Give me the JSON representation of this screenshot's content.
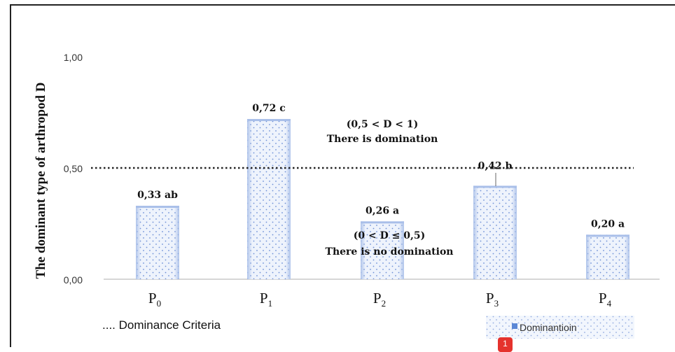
{
  "chart_data": {
    "type": "bar",
    "categories": [
      "P0",
      "P1",
      "P2",
      "P3",
      "P4"
    ],
    "category_parts": [
      {
        "base": "P",
        "sub": "0"
      },
      {
        "base": "P",
        "sub": "1"
      },
      {
        "base": "P",
        "sub": "2"
      },
      {
        "base": "P",
        "sub": "3"
      },
      {
        "base": "P",
        "sub": "4"
      }
    ],
    "values": [
      0.33,
      0.72,
      0.26,
      0.42,
      0.2
    ],
    "data_labels": [
      "0,33 ab",
      "0,72 c",
      "0,26 a",
      "0,42 b",
      "0,20 a"
    ],
    "title": "",
    "xlabel": "",
    "ylabel": "The dominant type of arthropod D",
    "ylim": [
      0,
      1
    ],
    "yticks": [
      0,
      0.5,
      1
    ],
    "ytick_labels": [
      "0,00",
      "0,50",
      "1,00"
    ],
    "reference_line": {
      "value": 0.5,
      "style": "dotted"
    },
    "annotations": {
      "upper_line1": "(0,5 < D < 1)",
      "upper_line2": "There is domination",
      "lower_line1": "(0 < D ≤ 0,5)",
      "lower_line2": "There is no domination"
    },
    "criteria_note": ".... Dominance Criteria",
    "series": [
      {
        "name": "Dominantioin",
        "values": [
          0.33,
          0.72,
          0.26,
          0.42,
          0.2
        ]
      }
    ],
    "legend_position": "bottom-right",
    "grid": false,
    "colors": {
      "bar_fill": "#eef3fc",
      "bar_dots": "#6d8fd6",
      "bar_edge": "#a9bfe9",
      "legend_marker": "#5b87d6"
    }
  },
  "badge": {
    "count": "1",
    "color": "#e5322d"
  }
}
